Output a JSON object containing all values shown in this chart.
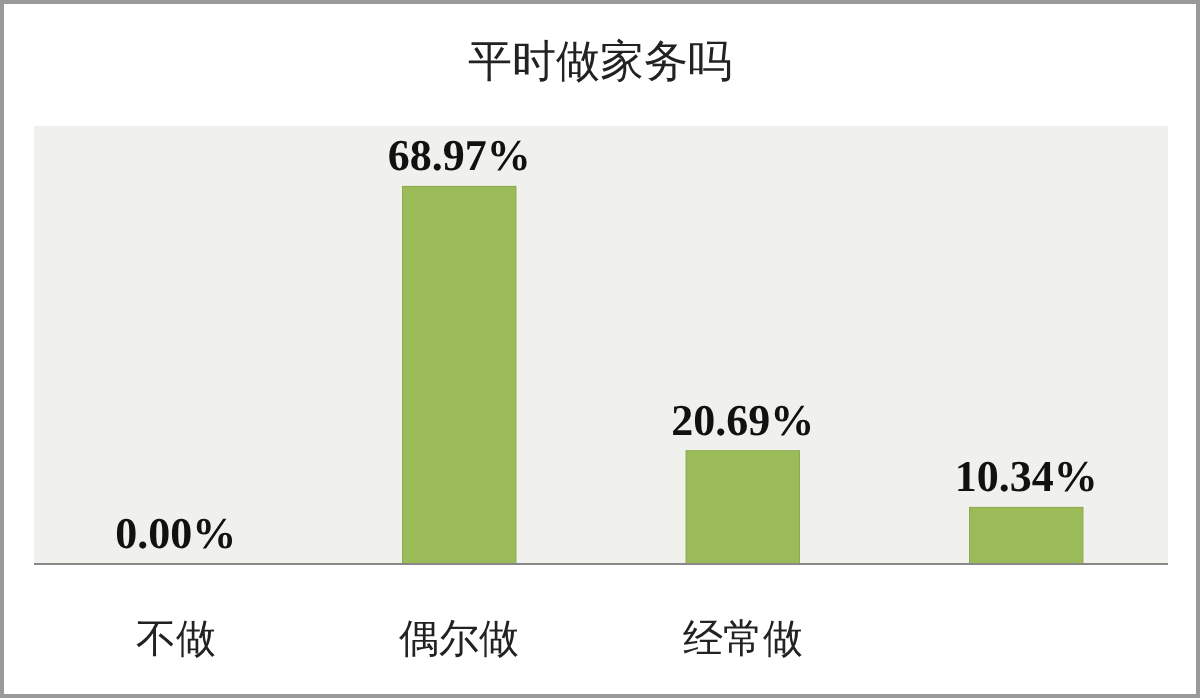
{
  "chart_data": {
    "type": "bar",
    "title": "平时做家务吗",
    "categories": [
      "不做",
      "偶尔做",
      "经常做",
      null
    ],
    "values": [
      0,
      68.97,
      20.69,
      10.34
    ],
    "value_labels": [
      "0.00%",
      "68.97%",
      "20.69%",
      "10.34%"
    ],
    "color": "#9bbb59",
    "ylim": [
      0,
      80
    ],
    "tick_labels": "x"
  }
}
